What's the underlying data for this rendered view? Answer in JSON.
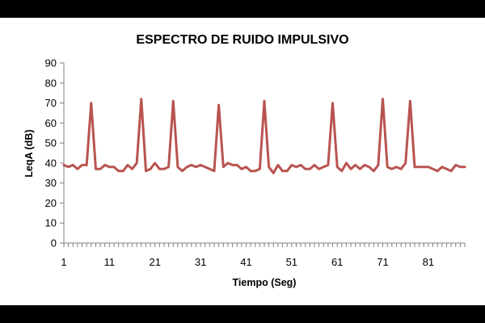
{
  "chart_data": {
    "type": "line",
    "title": "ESPECTRO DE RUIDO IMPULSIVO",
    "xlabel": "Tiempo (Seg)",
    "ylabel": "LeqA (dB)",
    "ylim": [
      0,
      90
    ],
    "y_ticks": [
      0,
      10,
      20,
      30,
      40,
      50,
      60,
      70,
      80,
      90
    ],
    "x_tick_labels": [
      1,
      11,
      21,
      31,
      41,
      51,
      61,
      71,
      81
    ],
    "xlim": [
      1,
      89
    ],
    "grid": false,
    "legend": "none",
    "series_color": "#B85450",
    "x": [
      1,
      2,
      3,
      4,
      5,
      6,
      7,
      8,
      9,
      10,
      11,
      12,
      13,
      14,
      15,
      16,
      17,
      18,
      19,
      20,
      21,
      22,
      23,
      24,
      25,
      26,
      27,
      28,
      29,
      30,
      31,
      32,
      33,
      34,
      35,
      36,
      37,
      38,
      39,
      40,
      41,
      42,
      43,
      44,
      45,
      46,
      47,
      48,
      49,
      50,
      51,
      52,
      53,
      54,
      55,
      56,
      57,
      58,
      59,
      60,
      61,
      62,
      63,
      64,
      65,
      66,
      67,
      68,
      69,
      70,
      71,
      72,
      73,
      74,
      75,
      76,
      77,
      78,
      79,
      80,
      81,
      82,
      83,
      84,
      85,
      86,
      87,
      88,
      89
    ],
    "values": [
      39,
      38,
      39,
      37,
      39,
      39,
      70,
      37,
      37,
      39,
      38,
      38,
      36,
      36,
      39,
      37,
      40,
      72,
      36,
      37,
      40,
      37,
      37,
      38,
      71,
      38,
      36,
      38,
      39,
      38,
      39,
      38,
      37,
      36,
      69,
      38,
      40,
      39,
      39,
      37,
      38,
      36,
      36,
      37,
      71,
      38,
      35,
      39,
      36,
      36,
      39,
      38,
      39,
      37,
      37,
      39,
      37,
      38,
      39,
      70,
      38,
      36,
      40,
      37,
      39,
      37,
      39,
      38,
      36,
      39,
      72,
      38,
      37,
      38,
      37,
      40,
      71,
      38,
      38,
      38,
      38,
      37,
      36,
      38,
      37,
      36,
      39,
      38,
      38
    ]
  }
}
